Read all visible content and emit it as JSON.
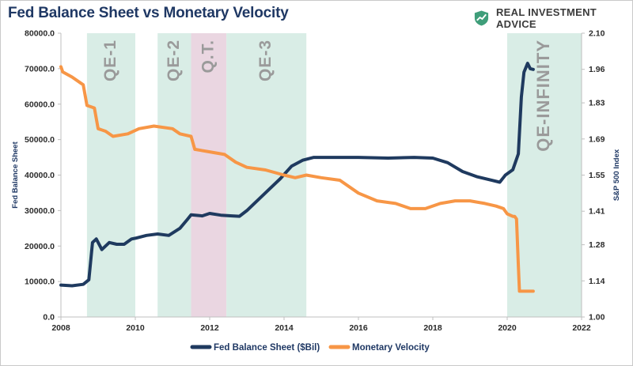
{
  "title": "Fed Balance Sheet vs Monetary Velocity",
  "brand": {
    "name": "REAL INVESTMENT ADVICE",
    "logo_icon": "shield-chart-icon",
    "logo_color": "#3f9e7a"
  },
  "colors": {
    "fed": "#1f3a5f",
    "velocity": "#f79646",
    "qe_band": "#d9ede6",
    "qt_band": "#ead6e1",
    "label": "#9a9a9a"
  },
  "chart_data": {
    "type": "line",
    "title": "Fed Balance Sheet vs Monetary Velocity",
    "xlim": [
      2008,
      2022
    ],
    "x_ticks": [
      "2008",
      "2010",
      "2012",
      "2014",
      "2016",
      "2018",
      "2020",
      "2022"
    ],
    "y_left": {
      "label": "Fed Balance Sheet",
      "range": [
        0,
        80000
      ],
      "ticks": [
        "0.0",
        "10000.0",
        "20000.0",
        "30000.0",
        "40000.0",
        "50000.0",
        "60000.0",
        "70000.0",
        "80000.0"
      ]
    },
    "y_right": {
      "label": "S&P 500 Index",
      "range": [
        1.0,
        2.1
      ],
      "ticks": [
        "1.00",
        "1.14",
        "1.28",
        "1.41",
        "1.55",
        "1.69",
        "1.83",
        "1.96",
        "2.10"
      ]
    },
    "bands": [
      {
        "label": "QE-1",
        "start": 2008.7,
        "end": 2010.0,
        "kind": "qe"
      },
      {
        "label": "QE-2",
        "start": 2010.6,
        "end": 2011.5,
        "kind": "qe"
      },
      {
        "label": "Q.T.",
        "start": 2011.5,
        "end": 2012.45,
        "kind": "qt"
      },
      {
        "label": "QE-3",
        "start": 2012.45,
        "end": 2014.6,
        "kind": "qe"
      },
      {
        "label": "QE-INFINITY",
        "start": 2020.0,
        "end": 2022.0,
        "kind": "qe"
      }
    ],
    "series": [
      {
        "name": "Fed Balance Sheet ($Bil)",
        "axis": "left",
        "points": [
          [
            2008.0,
            9000
          ],
          [
            2008.3,
            8800
          ],
          [
            2008.6,
            9200
          ],
          [
            2008.75,
            10500
          ],
          [
            2008.85,
            21000
          ],
          [
            2008.95,
            22000
          ],
          [
            2009.1,
            19000
          ],
          [
            2009.3,
            21000
          ],
          [
            2009.5,
            20500
          ],
          [
            2009.7,
            20500
          ],
          [
            2009.9,
            22000
          ],
          [
            2010.0,
            22200
          ],
          [
            2010.3,
            23000
          ],
          [
            2010.6,
            23400
          ],
          [
            2010.9,
            23000
          ],
          [
            2011.2,
            25000
          ],
          [
            2011.4,
            27500
          ],
          [
            2011.5,
            28800
          ],
          [
            2011.8,
            28500
          ],
          [
            2012.0,
            29200
          ],
          [
            2012.3,
            28700
          ],
          [
            2012.6,
            28500
          ],
          [
            2012.8,
            28400
          ],
          [
            2013.0,
            30000
          ],
          [
            2013.3,
            33000
          ],
          [
            2013.6,
            36000
          ],
          [
            2013.9,
            39000
          ],
          [
            2014.2,
            42500
          ],
          [
            2014.5,
            44200
          ],
          [
            2014.8,
            45000
          ],
          [
            2015.2,
            45000
          ],
          [
            2016.0,
            45000
          ],
          [
            2016.8,
            44800
          ],
          [
            2017.5,
            45000
          ],
          [
            2018.0,
            44800
          ],
          [
            2018.4,
            43500
          ],
          [
            2018.8,
            41000
          ],
          [
            2019.2,
            39500
          ],
          [
            2019.6,
            38500
          ],
          [
            2019.8,
            38000
          ],
          [
            2019.95,
            40000
          ],
          [
            2020.15,
            41500
          ],
          [
            2020.3,
            46000
          ],
          [
            2020.38,
            62000
          ],
          [
            2020.45,
            69000
          ],
          [
            2020.55,
            71500
          ],
          [
            2020.62,
            70000
          ],
          [
            2020.7,
            69800
          ]
        ]
      },
      {
        "name": "Monetary Velocity",
        "axis": "right",
        "points": [
          [
            2008.0,
            1.97
          ],
          [
            2008.05,
            1.95
          ],
          [
            2008.3,
            1.93
          ],
          [
            2008.6,
            1.9
          ],
          [
            2008.7,
            1.82
          ],
          [
            2008.9,
            1.81
          ],
          [
            2009.0,
            1.73
          ],
          [
            2009.2,
            1.72
          ],
          [
            2009.4,
            1.7
          ],
          [
            2009.8,
            1.71
          ],
          [
            2010.1,
            1.73
          ],
          [
            2010.5,
            1.74
          ],
          [
            2011.0,
            1.73
          ],
          [
            2011.2,
            1.71
          ],
          [
            2011.5,
            1.7
          ],
          [
            2011.6,
            1.65
          ],
          [
            2012.0,
            1.64
          ],
          [
            2012.4,
            1.63
          ],
          [
            2012.7,
            1.6
          ],
          [
            2013.0,
            1.58
          ],
          [
            2013.5,
            1.57
          ],
          [
            2014.0,
            1.55
          ],
          [
            2014.3,
            1.54
          ],
          [
            2014.6,
            1.55
          ],
          [
            2015.0,
            1.54
          ],
          [
            2015.5,
            1.53
          ],
          [
            2016.0,
            1.48
          ],
          [
            2016.5,
            1.45
          ],
          [
            2017.0,
            1.44
          ],
          [
            2017.4,
            1.42
          ],
          [
            2017.8,
            1.42
          ],
          [
            2018.2,
            1.44
          ],
          [
            2018.6,
            1.45
          ],
          [
            2019.0,
            1.45
          ],
          [
            2019.4,
            1.44
          ],
          [
            2019.7,
            1.43
          ],
          [
            2019.9,
            1.42
          ],
          [
            2020.0,
            1.4
          ],
          [
            2020.15,
            1.39
          ],
          [
            2020.2,
            1.39
          ],
          [
            2020.25,
            1.38
          ],
          [
            2020.3,
            1.2
          ],
          [
            2020.33,
            1.1
          ],
          [
            2020.5,
            1.1
          ],
          [
            2020.7,
            1.1
          ]
        ]
      }
    ],
    "legend": {
      "placement": "bottom",
      "items": [
        "Fed Balance Sheet ($Bil)",
        "Monetary Velocity"
      ]
    },
    "grid": false
  }
}
